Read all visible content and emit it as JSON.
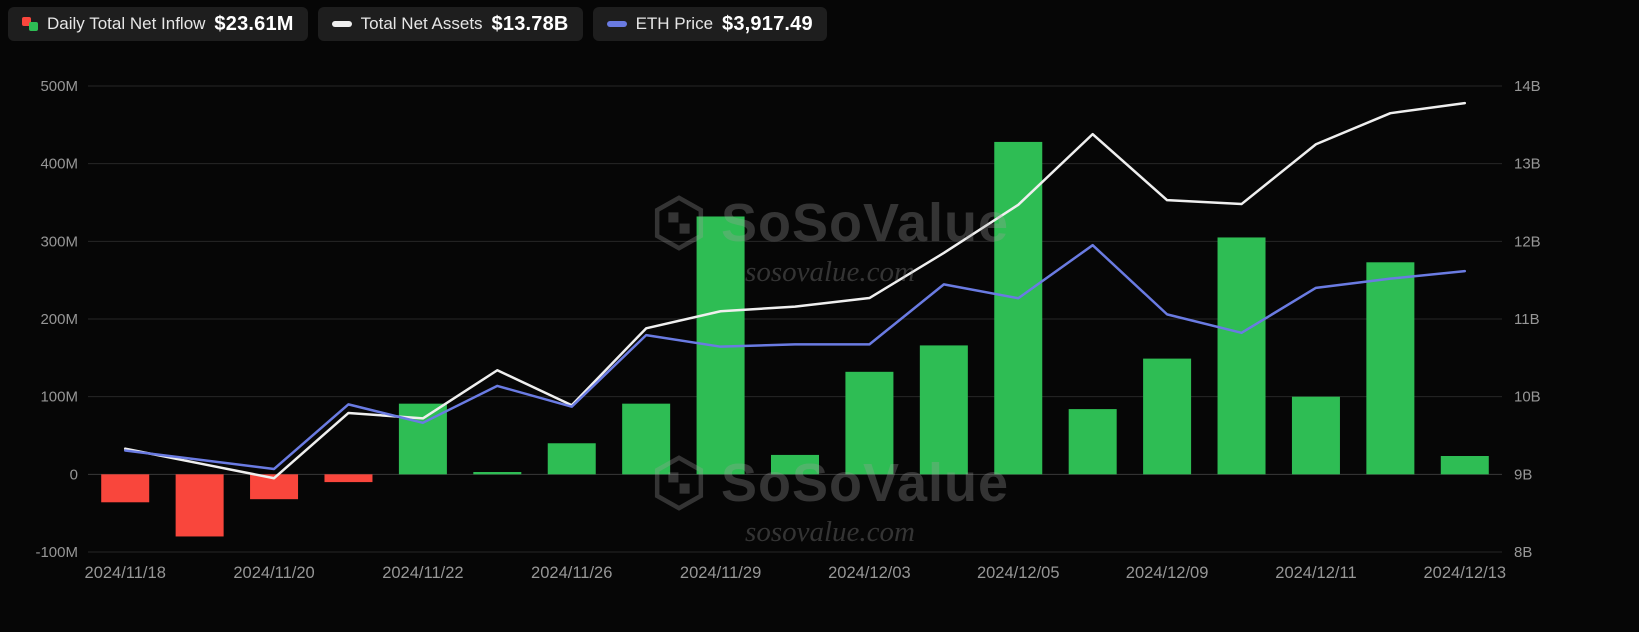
{
  "legend": {
    "daily_inflow": {
      "label": "Daily Total Net Inflow",
      "value": "$23.61M"
    },
    "net_assets": {
      "label": "Total Net Assets",
      "value": "$13.78B"
    },
    "eth_price": {
      "label": "ETH Price",
      "value": "$3,917.49"
    }
  },
  "watermark": {
    "brand": "SoSoValue",
    "domain": "sosovalue.com"
  },
  "colors": {
    "background": "#060606",
    "legend_bg": "#1e1e1e",
    "legend_label": "#e6e6e6",
    "legend_value": "#ffffff",
    "green": "#2ebd54",
    "red": "#f9463c",
    "white_line": "#efefef",
    "blue_line": "#6a7be2",
    "grid": "#262626",
    "zero_line": "#383838",
    "axis_text": "#969696",
    "watermark": "rgba(158,158,158,0.30)"
  },
  "chart_data": {
    "type": "bar",
    "subtype": "bar + dual line combo, dark theme, horizontal grid on, legend top-left",
    "dates": [
      "2024/11/18",
      "2024/11/19",
      "2024/11/20",
      "2024/11/21",
      "2024/11/22",
      "2024/11/25",
      "2024/11/26",
      "2024/11/27",
      "2024/11/29",
      "2024/12/02",
      "2024/12/03",
      "2024/12/04",
      "2024/12/05",
      "2024/12/06",
      "2024/12/09",
      "2024/12/10",
      "2024/12/11",
      "2024/12/12",
      "2024/12/13"
    ],
    "x_ticks": [
      {
        "i": 0,
        "label": "2024/11/18"
      },
      {
        "i": 2,
        "label": "2024/11/20"
      },
      {
        "i": 4,
        "label": "2024/11/22"
      },
      {
        "i": 6,
        "label": "2024/11/26"
      },
      {
        "i": 8,
        "label": "2024/11/29"
      },
      {
        "i": 10,
        "label": "2024/12/03"
      },
      {
        "i": 12,
        "label": "2024/12/05"
      },
      {
        "i": 14,
        "label": "2024/12/09"
      },
      {
        "i": 16,
        "label": "2024/12/11"
      },
      {
        "i": 18,
        "label": "2024/12/13"
      }
    ],
    "left_axis": {
      "min": -100,
      "max": 500,
      "ticks": [
        "500M",
        "400M",
        "300M",
        "200M",
        "100M",
        "0",
        "-100M"
      ]
    },
    "right_axis": {
      "min": 8,
      "max": 14,
      "ticks": [
        "14B",
        "13B",
        "12B",
        "11B",
        "10B",
        "9B",
        "8B"
      ]
    },
    "eth_axis_range": [
      2700,
      4720
    ],
    "series": [
      {
        "name": "Daily Total Net Inflow",
        "type": "bar",
        "axis": "left",
        "unit": "USD millions",
        "values": [
          -36,
          -80,
          -32,
          -10,
          91,
          3,
          40,
          91,
          332,
          25,
          132,
          166,
          428,
          84,
          149,
          305,
          100,
          273,
          23.61
        ]
      },
      {
        "name": "Total Net Assets",
        "type": "line",
        "axis": "right",
        "unit": "USD billions",
        "values": [
          9.33,
          9.14,
          8.95,
          9.79,
          9.72,
          10.34,
          9.89,
          10.88,
          11.1,
          11.16,
          11.27,
          11.85,
          12.47,
          13.38,
          12.53,
          12.48,
          13.25,
          13.65,
          13.78
        ]
      },
      {
        "name": "ETH Price",
        "type": "line",
        "axis": "hidden",
        "unit": "USD",
        "values": [
          3140,
          3100,
          3060,
          3340,
          3260,
          3420,
          3330,
          3640,
          3590,
          3600,
          3600,
          3860,
          3800,
          4030,
          3730,
          3650,
          3845,
          3885,
          3917.49
        ]
      }
    ]
  }
}
